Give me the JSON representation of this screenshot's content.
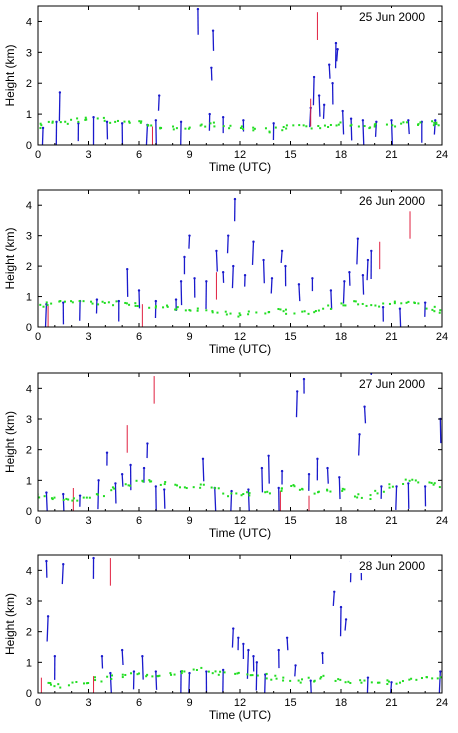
{
  "chart_data": [
    {
      "type": "scatter",
      "date_label": "25 Jun 2000",
      "xlabel": "Time (UTC)",
      "ylabel": "Height (km)",
      "xlim": [
        0,
        24
      ],
      "ylim": [
        0,
        4.5
      ],
      "xticks": [
        0,
        3,
        6,
        9,
        12,
        15,
        18,
        21,
        24
      ],
      "yticks": [
        0,
        1,
        2,
        3,
        4
      ],
      "boundary_layer": [
        [
          0.2,
          0.62
        ],
        [
          0.8,
          0.7
        ],
        [
          1.5,
          0.75
        ],
        [
          2.2,
          0.8
        ],
        [
          3.0,
          0.85
        ],
        [
          3.7,
          0.82
        ],
        [
          4.5,
          0.75
        ],
        [
          5.3,
          0.72
        ],
        [
          6.0,
          0.7
        ],
        [
          6.8,
          0.66
        ],
        [
          7.5,
          0.6
        ],
        [
          8.3,
          0.58
        ],
        [
          9.0,
          0.6
        ],
        [
          9.7,
          0.62
        ],
        [
          10.5,
          0.65
        ],
        [
          11.3,
          0.6
        ],
        [
          12.0,
          0.55
        ],
        [
          12.7,
          0.5
        ],
        [
          13.5,
          0.48
        ],
        [
          14.3,
          0.55
        ],
        [
          15.0,
          0.6
        ],
        [
          15.8,
          0.62
        ],
        [
          16.5,
          0.6
        ],
        [
          17.2,
          0.65
        ],
        [
          18.0,
          0.7
        ],
        [
          18.8,
          0.65
        ],
        [
          19.5,
          0.6
        ],
        [
          20.3,
          0.62
        ],
        [
          21.0,
          0.66
        ],
        [
          21.8,
          0.7
        ],
        [
          22.5,
          0.72
        ],
        [
          23.3,
          0.7
        ],
        [
          23.8,
          0.68
        ]
      ],
      "cloud_base": [
        [
          0.3,
          0.55
        ],
        [
          1.1,
          0.75
        ],
        [
          1.3,
          1.7
        ],
        [
          2.4,
          0.7
        ],
        [
          3.3,
          0.9
        ],
        [
          4.1,
          0.75
        ],
        [
          5.0,
          0.7
        ],
        [
          6.5,
          0.65
        ],
        [
          7.0,
          0.8
        ],
        [
          7.2,
          1.6
        ],
        [
          8.5,
          0.75
        ],
        [
          9.5,
          4.4
        ],
        [
          10.2,
          1.0
        ],
        [
          10.3,
          2.5
        ],
        [
          10.4,
          3.7
        ],
        [
          11.0,
          0.9
        ],
        [
          12.2,
          0.8
        ],
        [
          14.0,
          0.7
        ],
        [
          16.2,
          1.2
        ],
        [
          16.4,
          2.2
        ],
        [
          16.7,
          1.6
        ],
        [
          17.0,
          1.3
        ],
        [
          17.3,
          2.6
        ],
        [
          17.5,
          2.0
        ],
        [
          17.7,
          3.3
        ],
        [
          17.8,
          3.1
        ],
        [
          18.1,
          1.1
        ],
        [
          18.6,
          0.85
        ],
        [
          19.3,
          0.8
        ],
        [
          20.1,
          0.75
        ],
        [
          21.0,
          0.8
        ],
        [
          22.0,
          0.8
        ],
        [
          22.8,
          0.75
        ],
        [
          23.6,
          0.8
        ]
      ],
      "precipitation": [
        [
          6.8,
          0.6
        ],
        [
          16.2,
          1.5
        ],
        [
          16.6,
          4.3
        ]
      ]
    },
    {
      "type": "scatter",
      "date_label": "26 Jun 2000",
      "xlabel": "Time (UTC)",
      "ylabel": "Height (km)",
      "xlim": [
        0,
        24
      ],
      "ylim": [
        0,
        4.5
      ],
      "xticks": [
        0,
        3,
        6,
        9,
        12,
        15,
        18,
        21,
        24
      ],
      "yticks": [
        0,
        1,
        2,
        3,
        4
      ],
      "boundary_layer": [
        [
          0.2,
          0.72
        ],
        [
          0.8,
          0.75
        ],
        [
          1.5,
          0.78
        ],
        [
          2.2,
          0.8
        ],
        [
          3.0,
          0.82
        ],
        [
          3.7,
          0.8
        ],
        [
          4.5,
          0.78
        ],
        [
          5.3,
          0.75
        ],
        [
          6.0,
          0.72
        ],
        [
          6.8,
          0.68
        ],
        [
          7.5,
          0.65
        ],
        [
          8.3,
          0.6
        ],
        [
          9.0,
          0.58
        ],
        [
          9.7,
          0.55
        ],
        [
          10.5,
          0.5
        ],
        [
          11.3,
          0.45
        ],
        [
          12.0,
          0.4
        ],
        [
          12.7,
          0.45
        ],
        [
          13.5,
          0.5
        ],
        [
          14.3,
          0.55
        ],
        [
          15.0,
          0.5
        ],
        [
          15.8,
          0.45
        ],
        [
          16.5,
          0.55
        ],
        [
          17.2,
          0.65
        ],
        [
          18.0,
          0.75
        ],
        [
          18.8,
          0.8
        ],
        [
          19.5,
          0.75
        ],
        [
          20.3,
          0.7
        ],
        [
          21.0,
          0.8
        ],
        [
          21.8,
          0.85
        ],
        [
          22.5,
          0.75
        ],
        [
          23.3,
          0.6
        ],
        [
          23.8,
          0.5
        ]
      ],
      "cloud_base": [
        [
          0.5,
          0.75
        ],
        [
          1.5,
          0.8
        ],
        [
          2.5,
          0.85
        ],
        [
          3.5,
          0.9
        ],
        [
          4.8,
          0.85
        ],
        [
          5.3,
          1.9
        ],
        [
          6.0,
          1.2
        ],
        [
          7.0,
          0.85
        ],
        [
          8.2,
          0.9
        ],
        [
          8.5,
          1.5
        ],
        [
          8.7,
          2.3
        ],
        [
          9.0,
          3.0
        ],
        [
          9.3,
          1.6
        ],
        [
          10.0,
          1.5
        ],
        [
          10.6,
          2.5
        ],
        [
          11.0,
          1.8
        ],
        [
          11.3,
          3.0
        ],
        [
          11.6,
          2.0
        ],
        [
          11.7,
          4.2
        ],
        [
          12.3,
          1.7
        ],
        [
          12.8,
          2.8
        ],
        [
          13.4,
          2.2
        ],
        [
          13.9,
          1.6
        ],
        [
          14.5,
          2.5
        ],
        [
          14.7,
          2.0
        ],
        [
          15.5,
          1.4
        ],
        [
          16.3,
          1.6
        ],
        [
          17.4,
          1.2
        ],
        [
          18.2,
          1.5
        ],
        [
          18.5,
          1.8
        ],
        [
          19.0,
          2.9
        ],
        [
          19.3,
          1.7
        ],
        [
          19.6,
          2.2
        ],
        [
          19.8,
          2.5
        ],
        [
          20.5,
          0.65
        ],
        [
          21.5,
          0.6
        ],
        [
          23.0,
          0.8
        ]
      ],
      "precipitation": [
        [
          0.6,
          0.7
        ],
        [
          6.2,
          0.75
        ],
        [
          10.6,
          1.8
        ],
        [
          20.3,
          2.8
        ],
        [
          22.1,
          3.8
        ]
      ]
    },
    {
      "type": "scatter",
      "date_label": "27 Jun 2000",
      "xlabel": "Time (UTC)",
      "ylabel": "Height (km)",
      "xlim": [
        0,
        24
      ],
      "ylim": [
        0,
        4.5
      ],
      "xticks": [
        0,
        3,
        6,
        9,
        12,
        15,
        18,
        21,
        24
      ],
      "yticks": [
        0,
        1,
        2,
        3,
        4
      ],
      "boundary_layer": [
        [
          0.2,
          0.5
        ],
        [
          0.8,
          0.45
        ],
        [
          1.5,
          0.42
        ],
        [
          2.2,
          0.4
        ],
        [
          3.0,
          0.45
        ],
        [
          3.7,
          0.55
        ],
        [
          4.5,
          0.7
        ],
        [
          5.3,
          0.85
        ],
        [
          6.0,
          0.95
        ],
        [
          6.8,
          1.0
        ],
        [
          7.5,
          0.9
        ],
        [
          8.3,
          0.8
        ],
        [
          9.0,
          0.75
        ],
        [
          9.7,
          0.8
        ],
        [
          10.5,
          0.7
        ],
        [
          11.3,
          0.55
        ],
        [
          12.0,
          0.5
        ],
        [
          12.7,
          0.55
        ],
        [
          13.5,
          0.6
        ],
        [
          14.3,
          0.7
        ],
        [
          15.0,
          0.8
        ],
        [
          15.8,
          0.7
        ],
        [
          16.5,
          0.6
        ],
        [
          17.2,
          0.65
        ],
        [
          18.0,
          0.7
        ],
        [
          18.8,
          0.5
        ],
        [
          19.5,
          0.45
        ],
        [
          20.3,
          0.6
        ],
        [
          21.0,
          0.8
        ],
        [
          21.8,
          0.95
        ],
        [
          22.5,
          1.0
        ],
        [
          23.3,
          0.9
        ],
        [
          23.8,
          0.85
        ]
      ],
      "cloud_base": [
        [
          0.5,
          0.6
        ],
        [
          1.5,
          0.55
        ],
        [
          2.5,
          0.5
        ],
        [
          3.6,
          1.0
        ],
        [
          4.1,
          1.9
        ],
        [
          4.6,
          0.9
        ],
        [
          5.0,
          1.2
        ],
        [
          5.5,
          1.5
        ],
        [
          6.3,
          1.4
        ],
        [
          6.5,
          2.2
        ],
        [
          7.0,
          0.8
        ],
        [
          7.5,
          0.7
        ],
        [
          9.8,
          1.7
        ],
        [
          10.5,
          0.75
        ],
        [
          11.5,
          0.65
        ],
        [
          12.5,
          0.7
        ],
        [
          13.3,
          1.4
        ],
        [
          13.7,
          1.8
        ],
        [
          14.3,
          0.75
        ],
        [
          14.5,
          1.3
        ],
        [
          15.4,
          3.9
        ],
        [
          15.8,
          4.3
        ],
        [
          16.1,
          1.2
        ],
        [
          16.6,
          1.7
        ],
        [
          17.2,
          1.4
        ],
        [
          17.9,
          1.1
        ],
        [
          19.1,
          2.5
        ],
        [
          19.4,
          3.4
        ],
        [
          19.8,
          4.5
        ],
        [
          20.4,
          0.8
        ],
        [
          21.3,
          0.8
        ],
        [
          22.0,
          0.9
        ],
        [
          23.0,
          0.8
        ],
        [
          23.9,
          3.0
        ]
      ],
      "precipitation": [
        [
          2.1,
          0.75
        ],
        [
          5.3,
          2.8
        ],
        [
          6.9,
          4.4
        ],
        [
          14.4,
          0.65
        ],
        [
          16.1,
          0.5
        ]
      ]
    },
    {
      "type": "scatter",
      "date_label": "28 Jun 2000",
      "xlabel": "Time (UTC)",
      "ylabel": "Height (km)",
      "xlim": [
        0,
        24
      ],
      "ylim": [
        0,
        4.5
      ],
      "xticks": [
        0,
        3,
        6,
        9,
        12,
        15,
        18,
        21,
        24
      ],
      "yticks": [
        0,
        1,
        2,
        3,
        4
      ],
      "boundary_layer": [
        [
          0.5,
          0.3
        ],
        [
          1.2,
          0.25
        ],
        [
          2.0,
          0.3
        ],
        [
          2.8,
          0.35
        ],
        [
          3.5,
          0.45
        ],
        [
          4.2,
          0.5
        ],
        [
          5.0,
          0.55
        ],
        [
          5.8,
          0.6
        ],
        [
          6.5,
          0.6
        ],
        [
          7.3,
          0.6
        ],
        [
          8.0,
          0.65
        ],
        [
          8.8,
          0.7
        ],
        [
          9.5,
          0.75
        ],
        [
          10.3,
          0.7
        ],
        [
          11.0,
          0.65
        ],
        [
          11.8,
          0.6
        ],
        [
          12.5,
          0.55
        ],
        [
          13.3,
          0.55
        ],
        [
          14.0,
          0.5
        ],
        [
          14.8,
          0.45
        ],
        [
          15.5,
          0.4
        ],
        [
          16.3,
          0.45
        ],
        [
          17.0,
          0.5
        ],
        [
          17.8,
          0.45
        ],
        [
          18.5,
          0.4
        ],
        [
          19.3,
          0.35
        ],
        [
          20.0,
          0.4
        ],
        [
          20.8,
          0.35
        ],
        [
          21.5,
          0.35
        ],
        [
          22.3,
          0.4
        ],
        [
          23.0,
          0.45
        ],
        [
          23.7,
          0.5
        ]
      ],
      "cloud_base": [
        [
          0.5,
          4.3
        ],
        [
          1.5,
          4.2
        ],
        [
          3.3,
          4.4
        ],
        [
          0.6,
          2.5
        ],
        [
          1.0,
          1.2
        ],
        [
          3.8,
          1.2
        ],
        [
          4.3,
          0.65
        ],
        [
          5.0,
          1.4
        ],
        [
          5.7,
          0.7
        ],
        [
          6.2,
          1.2
        ],
        [
          7.0,
          0.7
        ],
        [
          8.5,
          0.7
        ],
        [
          9.0,
          0.65
        ],
        [
          10.0,
          0.7
        ],
        [
          11.0,
          0.75
        ],
        [
          11.6,
          2.1
        ],
        [
          11.9,
          1.8
        ],
        [
          12.2,
          1.6
        ],
        [
          12.5,
          1.4
        ],
        [
          12.8,
          1.2
        ],
        [
          13.0,
          1.0
        ],
        [
          13.5,
          0.6
        ],
        [
          14.3,
          1.4
        ],
        [
          14.8,
          1.8
        ],
        [
          15.3,
          0.9
        ],
        [
          16.2,
          0.4
        ],
        [
          16.9,
          1.3
        ],
        [
          17.6,
          3.3
        ],
        [
          18.0,
          2.8
        ],
        [
          18.3,
          2.4
        ],
        [
          18.6,
          4.3
        ],
        [
          19.2,
          4.1
        ],
        [
          19.6,
          0.5
        ],
        [
          21.0,
          0.35
        ],
        [
          23.9,
          0.7
        ]
      ],
      "precipitation": [
        [
          0.2,
          0.5
        ],
        [
          3.3,
          0.55
        ],
        [
          4.3,
          4.4
        ]
      ]
    }
  ]
}
